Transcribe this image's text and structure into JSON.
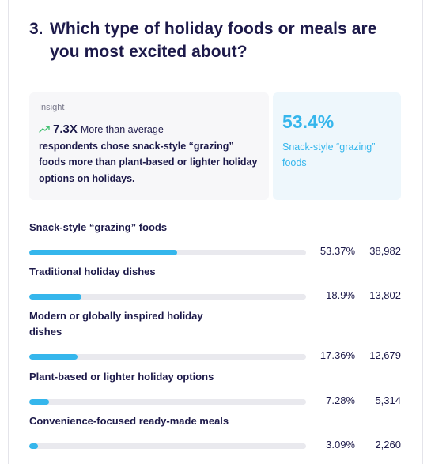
{
  "question": {
    "number": "3.",
    "text": "Which type of holiday foods or meals are you most excited about?"
  },
  "insight": {
    "label": "Insight",
    "icon": "trending-up-icon",
    "multiplier": "7.3X",
    "lead_text": "More than average",
    "body_text": "respondents chose snack-style “grazing” foods more than plant-based or lighter holiday options on holidays."
  },
  "highlight": {
    "value": "53.4%",
    "label": "Snack-style “grazing” foods"
  },
  "colors": {
    "accent": "#35b6ec",
    "text": "#1d1a4a",
    "track": "#e9e9ee"
  },
  "results": [
    {
      "label": "Snack-style “grazing” foods",
      "percent": "53.37%",
      "count": "38,982",
      "value": 53.37
    },
    {
      "label": "Traditional holiday dishes",
      "percent": "18.9%",
      "count": "13,802",
      "value": 18.9
    },
    {
      "label": "Modern or globally inspired holiday dishes",
      "percent": "17.36%",
      "count": "12,679",
      "value": 17.36
    },
    {
      "label": "Plant-based or lighter holiday options",
      "percent": "7.28%",
      "count": "5,314",
      "value": 7.28
    },
    {
      "label": "Convenience-focused ready-made meals",
      "percent": "3.09%",
      "count": "2,260",
      "value": 3.09
    }
  ]
}
